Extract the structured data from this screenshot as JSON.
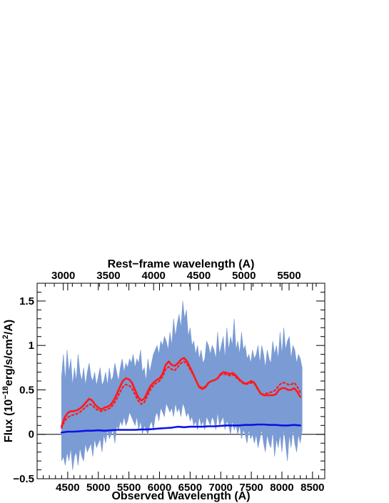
{
  "chart_data": {
    "type": "line",
    "xlabel": "Observed Wavelength (A)",
    "x2label": "Rest−frame wavelength (A)",
    "ylabel": "Flux (10",
    "ylabel_exp1": "−18",
    "ylabel_mid": "erg/s/cm",
    "ylabel_exp2": "2",
    "ylabel_end": "/A)",
    "xlim": [
      4000,
      8700
    ],
    "x2lim": [
      2710,
      5895
    ],
    "ylim": [
      -0.5,
      1.7
    ],
    "x_ticks": [
      4500,
      5000,
      5500,
      6000,
      6500,
      7000,
      7500,
      8000,
      8500
    ],
    "x_tick_labels": [
      "4500",
      "5000",
      "5500",
      "6000",
      "6500",
      "7000",
      "7500",
      "8000",
      "8500"
    ],
    "x2_ticks": [
      3000,
      3500,
      4000,
      4500,
      5000,
      5500
    ],
    "x2_tick_labels": [
      "3000",
      "3500",
      "4000",
      "4500",
      "5000",
      "5500"
    ],
    "y_ticks": [
      -0.5,
      0,
      0.5,
      1,
      1.5
    ],
    "y_tick_labels": [
      "−0.5",
      "0",
      "0.5",
      "1",
      "1.5"
    ],
    "zero_line": 0,
    "series": [
      {
        "style": "noisy-fill",
        "color": "#7b9bd4",
        "x": [
          4400,
          4430,
          4460,
          4490,
          4520,
          4550,
          4580,
          4610,
          4640,
          4670,
          4700,
          4730,
          4760,
          4790,
          4820,
          4850,
          4880,
          4910,
          4940,
          4970,
          5000,
          5030,
          5060,
          5090,
          5120,
          5150,
          5180,
          5210,
          5240,
          5270,
          5300,
          5330,
          5360,
          5390,
          5420,
          5450,
          5480,
          5510,
          5540,
          5570,
          5600,
          5630,
          5660,
          5690,
          5720,
          5750,
          5780,
          5810,
          5840,
          5870,
          5900,
          5930,
          5960,
          5990,
          6020,
          6050,
          6080,
          6110,
          6140,
          6170,
          6200,
          6230,
          6260,
          6290,
          6320,
          6350,
          6380,
          6410,
          6440,
          6470,
          6500,
          6530,
          6560,
          6590,
          6620,
          6650,
          6680,
          6710,
          6740,
          6770,
          6800,
          6830,
          6860,
          6890,
          6920,
          6950,
          6980,
          7010,
          7040,
          7070,
          7100,
          7130,
          7160,
          7190,
          7220,
          7250,
          7280,
          7310,
          7340,
          7370,
          7400,
          7430,
          7460,
          7490,
          7520,
          7550,
          7580,
          7610,
          7640,
          7670,
          7700,
          7730,
          7760,
          7790,
          7820,
          7850,
          7880,
          7910,
          7940,
          7970,
          8000,
          8030,
          8060,
          8090,
          8120,
          8150,
          8180,
          8210,
          8240,
          8270,
          8300,
          8330
        ],
        "upper": [
          0.65,
          0.9,
          0.6,
          0.95,
          0.7,
          0.85,
          0.55,
          0.75,
          0.6,
          0.9,
          0.7,
          0.6,
          0.75,
          0.55,
          0.7,
          0.8,
          0.65,
          0.6,
          0.7,
          0.55,
          0.65,
          0.75,
          0.55,
          0.6,
          0.7,
          0.55,
          0.75,
          0.6,
          0.65,
          0.8,
          0.7,
          0.6,
          0.75,
          0.85,
          0.7,
          0.8,
          0.75,
          0.85,
          0.8,
          0.9,
          0.75,
          0.85,
          0.8,
          0.95,
          0.7,
          0.75,
          0.6,
          0.85,
          0.7,
          0.8,
          0.9,
          0.95,
          1.0,
          0.9,
          1.05,
          1.0,
          1.1,
          1.05,
          0.95,
          1.15,
          1.0,
          1.3,
          1.1,
          1.25,
          1.35,
          1.2,
          1.5,
          1.3,
          1.4,
          1.1,
          1.2,
          1.0,
          1.05,
          0.9,
          1.0,
          0.85,
          0.95,
          0.8,
          0.85,
          1.05,
          1.0,
          0.9,
          1.0,
          0.95,
          0.85,
          1.15,
          0.9,
          1.0,
          1.1,
          0.85,
          1.2,
          0.95,
          1.1,
          1.0,
          1.3,
          0.95,
          1.05,
          0.9,
          1.15,
          0.95,
          1.0,
          0.85,
          0.9,
          0.8,
          0.95,
          0.85,
          0.9,
          1.0,
          0.8,
          1.0,
          0.9,
          0.75,
          0.95,
          0.85,
          0.8,
          1.05,
          0.9,
          1.0,
          0.85,
          1.15,
          0.9,
          1.2,
          0.95,
          1.05,
          1.1,
          0.85,
          1.0,
          0.95,
          0.8,
          0.9,
          0.85,
          0.75
        ],
        "lower": [
          -0.3,
          -0.25,
          -0.35,
          -0.2,
          -0.3,
          -0.15,
          -0.4,
          -0.25,
          -0.2,
          -0.35,
          -0.15,
          -0.25,
          -0.3,
          -0.1,
          -0.2,
          -0.15,
          -0.1,
          -0.25,
          -0.05,
          -0.15,
          -0.1,
          -0.05,
          -0.2,
          0.0,
          -0.1,
          0.05,
          -0.05,
          0.0,
          0.05,
          -0.1,
          0.1,
          0.05,
          0.15,
          0.1,
          0.2,
          0.1,
          0.15,
          0.25,
          0.2,
          0.15,
          0.1,
          0.2,
          0.05,
          0.15,
          0.0,
          0.1,
          0.05,
          0.0,
          0.1,
          0.15,
          0.05,
          0.2,
          0.25,
          0.15,
          0.3,
          0.25,
          0.2,
          0.35,
          0.3,
          0.25,
          0.3,
          0.2,
          0.35,
          0.25,
          0.3,
          0.2,
          0.35,
          0.3,
          0.2,
          0.25,
          0.15,
          0.2,
          0.1,
          0.15,
          0.05,
          0.2,
          0.1,
          0.15,
          0.05,
          0.2,
          0.15,
          0.1,
          0.2,
          0.15,
          0.05,
          0.25,
          0.1,
          0.15,
          0.2,
          0.05,
          0.15,
          0.1,
          0.0,
          0.15,
          0.05,
          0.1,
          0.0,
          0.1,
          -0.05,
          0.05,
          0.0,
          -0.1,
          0.05,
          -0.05,
          0.0,
          -0.1,
          0.0,
          -0.15,
          -0.05,
          0.05,
          -0.1,
          -0.2,
          0.0,
          -0.1,
          -0.15,
          0.05,
          -0.25,
          -0.05,
          -0.15,
          0.0,
          -0.2,
          0.05,
          -0.1,
          -0.3,
          0.0,
          -0.15,
          0.05,
          -0.1,
          -0.2,
          0.0,
          -0.1,
          0.05
        ]
      },
      {
        "style": "solid",
        "color": "#ff1a1a",
        "x": [
          4400,
          4450,
          4500,
          4550,
          4600,
          4650,
          4700,
          4750,
          4800,
          4850,
          4900,
          4950,
          5000,
          5050,
          5100,
          5150,
          5200,
          5250,
          5300,
          5350,
          5400,
          5450,
          5500,
          5550,
          5600,
          5650,
          5700,
          5750,
          5800,
          5850,
          5900,
          5950,
          6000,
          6050,
          6100,
          6150,
          6200,
          6250,
          6300,
          6350,
          6400,
          6450,
          6500,
          6550,
          6600,
          6650,
          6700,
          6750,
          6800,
          6850,
          6900,
          6950,
          7000,
          7050,
          7100,
          7150,
          7200,
          7250,
          7300,
          7350,
          7400,
          7450,
          7500,
          7550,
          7600,
          7650,
          7700,
          7750,
          7800,
          7850,
          7900,
          7950,
          8000,
          8050,
          8100,
          8150,
          8200,
          8250,
          8300
        ],
        "y": [
          0.09,
          0.19,
          0.24,
          0.26,
          0.26,
          0.27,
          0.29,
          0.32,
          0.36,
          0.4,
          0.38,
          0.33,
          0.3,
          0.28,
          0.3,
          0.31,
          0.33,
          0.38,
          0.45,
          0.53,
          0.6,
          0.63,
          0.62,
          0.58,
          0.5,
          0.42,
          0.38,
          0.4,
          0.47,
          0.54,
          0.58,
          0.61,
          0.63,
          0.68,
          0.78,
          0.82,
          0.78,
          0.77,
          0.8,
          0.84,
          0.86,
          0.82,
          0.75,
          0.68,
          0.6,
          0.53,
          0.51,
          0.53,
          0.58,
          0.6,
          0.61,
          0.63,
          0.68,
          0.7,
          0.69,
          0.68,
          0.69,
          0.66,
          0.62,
          0.59,
          0.57,
          0.58,
          0.6,
          0.58,
          0.52,
          0.46,
          0.44,
          0.44,
          0.44,
          0.44,
          0.45,
          0.5,
          0.52,
          0.52,
          0.5,
          0.5,
          0.52,
          0.48,
          0.42
        ]
      },
      {
        "style": "dotted",
        "color": "#ff1a1a",
        "x": [
          4400,
          4450,
          4500,
          4550,
          4600,
          4650,
          4700,
          4750,
          4800,
          4850,
          4900,
          4950,
          5000,
          5050,
          5100,
          5150,
          5200,
          5250,
          5300,
          5350,
          5400,
          5450,
          5500,
          5550,
          5600,
          5650,
          5700,
          5750,
          5800,
          5850,
          5900,
          5950,
          6000,
          6050,
          6100,
          6150,
          6200,
          6250,
          6300,
          6350,
          6400,
          6450,
          6500,
          6550,
          6600,
          6650,
          6700,
          6750,
          6800,
          6850,
          6900,
          6950,
          7000,
          7050,
          7100,
          7150,
          7200,
          7250,
          7300,
          7350,
          7400,
          7450,
          7500,
          7550,
          7600,
          7650,
          7700,
          7750,
          7800,
          7850,
          7900,
          7950,
          8000,
          8050,
          8100,
          8150,
          8200,
          8250,
          8300
        ],
        "y": [
          0.07,
          0.15,
          0.19,
          0.21,
          0.22,
          0.23,
          0.25,
          0.28,
          0.31,
          0.34,
          0.33,
          0.29,
          0.27,
          0.26,
          0.27,
          0.28,
          0.3,
          0.34,
          0.4,
          0.47,
          0.53,
          0.56,
          0.55,
          0.52,
          0.45,
          0.38,
          0.34,
          0.36,
          0.43,
          0.5,
          0.55,
          0.58,
          0.6,
          0.65,
          0.73,
          0.76,
          0.73,
          0.72,
          0.76,
          0.8,
          0.82,
          0.79,
          0.73,
          0.67,
          0.6,
          0.54,
          0.52,
          0.54,
          0.58,
          0.6,
          0.61,
          0.63,
          0.67,
          0.68,
          0.67,
          0.66,
          0.67,
          0.64,
          0.61,
          0.58,
          0.56,
          0.57,
          0.58,
          0.57,
          0.51,
          0.46,
          0.45,
          0.46,
          0.47,
          0.48,
          0.5,
          0.55,
          0.58,
          0.58,
          0.56,
          0.56,
          0.58,
          0.54,
          0.47
        ]
      },
      {
        "style": "solid",
        "color": "#0a14e6",
        "x": [
          4400,
          4500,
          4600,
          4700,
          4800,
          4900,
          5000,
          5100,
          5200,
          5300,
          5400,
          5500,
          5600,
          5700,
          5800,
          5900,
          6000,
          6100,
          6200,
          6300,
          6400,
          6500,
          6600,
          6700,
          6800,
          6900,
          7000,
          7100,
          7200,
          7300,
          7400,
          7500,
          7600,
          7700,
          7800,
          7900,
          8000,
          8100,
          8200,
          8300
        ],
        "y": [
          0.02,
          0.03,
          0.03,
          0.035,
          0.04,
          0.04,
          0.045,
          0.04,
          0.045,
          0.05,
          0.05,
          0.05,
          0.05,
          0.055,
          0.055,
          0.06,
          0.065,
          0.07,
          0.075,
          0.085,
          0.08,
          0.085,
          0.085,
          0.085,
          0.09,
          0.09,
          0.095,
          0.1,
          0.1,
          0.1,
          0.105,
          0.105,
          0.11,
          0.11,
          0.105,
          0.105,
          0.1,
          0.1,
          0.105,
          0.1
        ]
      }
    ]
  }
}
